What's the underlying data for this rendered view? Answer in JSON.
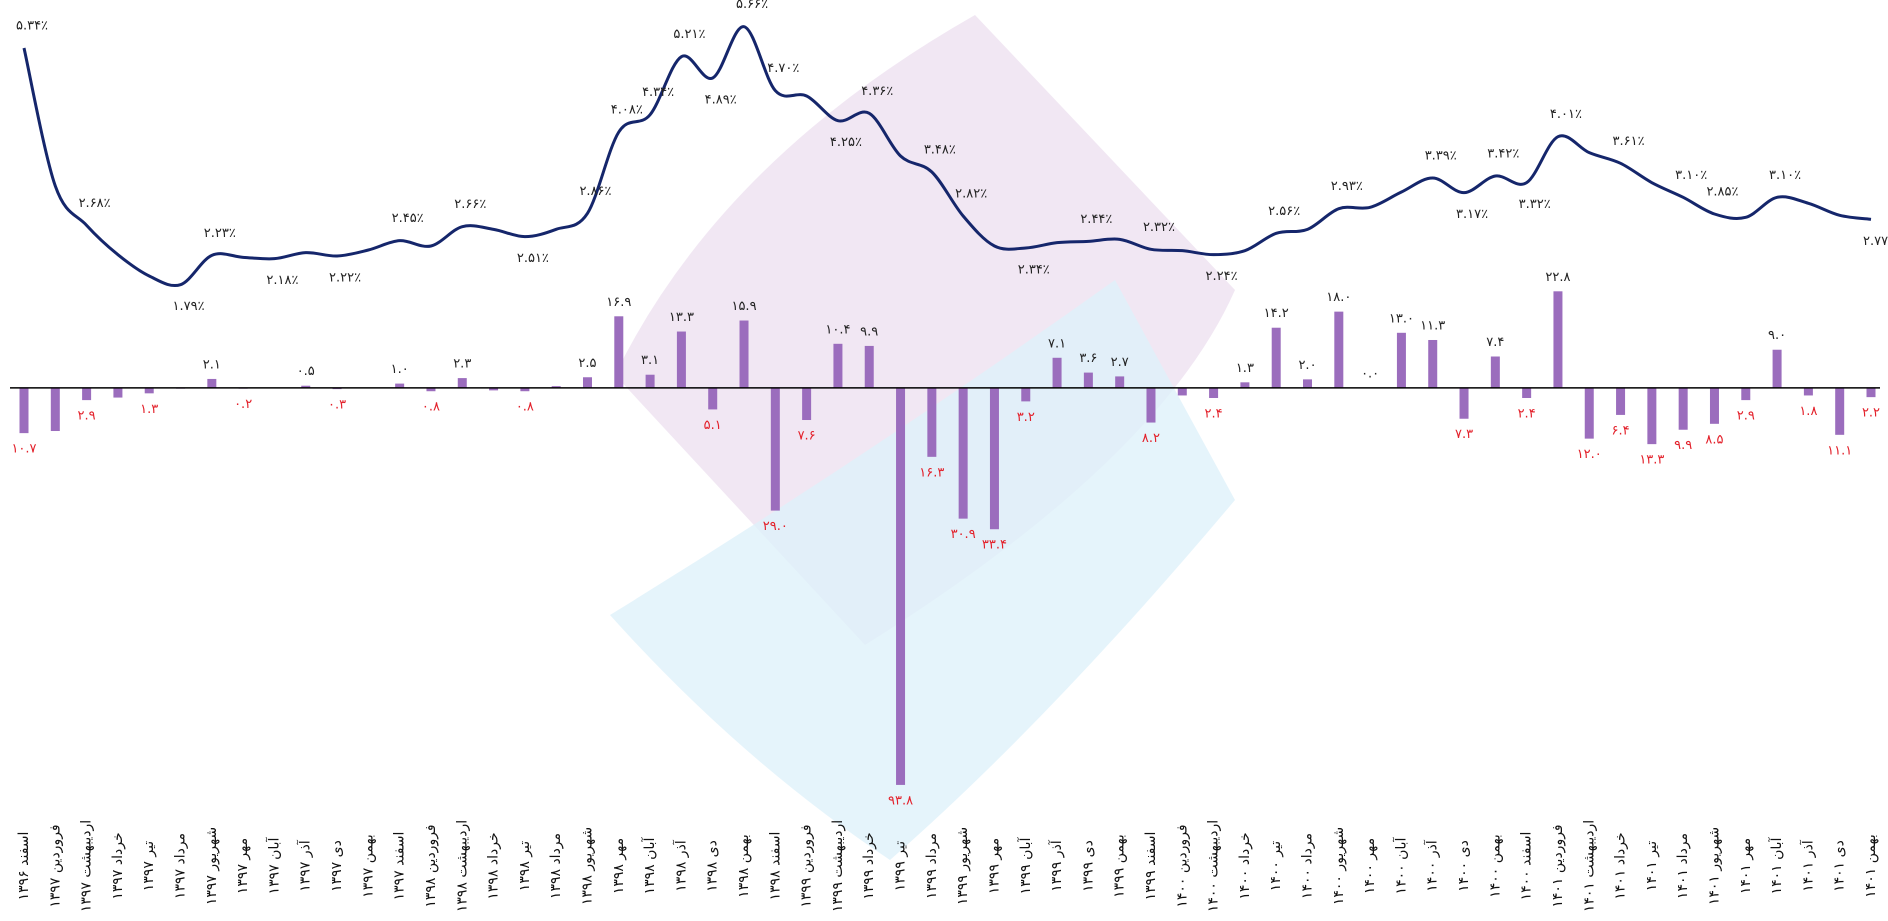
{
  "chart_data": {
    "type": "combo",
    "categories": [
      "اسفند ۱۳۹۶",
      "فروردین ۱۳۹۷",
      "اردیبهشت ۱۳۹۷",
      "خرداد ۱۳۹۷",
      "تیر ۱۳۹۷",
      "مرداد ۱۳۹۷",
      "شهریور ۱۳۹۷",
      "مهر ۱۳۹۷",
      "آبان ۱۳۹۷",
      "آذر ۱۳۹۷",
      "دی ۱۳۹۷",
      "بهمن ۱۳۹۷",
      "اسفند ۱۳۹۷",
      "فروردین ۱۳۹۸",
      "اردیبهشت ۱۳۹۸",
      "خرداد ۱۳۹۸",
      "تیر ۱۳۹۸",
      "مرداد ۱۳۹۸",
      "شهریور ۱۳۹۸",
      "مهر ۱۳۹۸",
      "آبان ۱۳۹۸",
      "آذر ۱۳۹۸",
      "دی ۱۳۹۸",
      "بهمن ۱۳۹۸",
      "اسفند ۱۳۹۸",
      "فروردین ۱۳۹۹",
      "اردیبهشت ۱۳۹۹",
      "خرداد ۱۳۹۹",
      "تیر ۱۳۹۹",
      "مرداد ۱۳۹۹",
      "شهریور ۱۳۹۹",
      "مهر ۱۳۹۹",
      "آبان ۱۳۹۹",
      "آذر ۱۳۹۹",
      "دی ۱۳۹۹",
      "بهمن ۱۳۹۹",
      "اسفند ۱۳۹۹",
      "فروردین ۱۴۰۰",
      "اردیبهشت ۱۴۰۰",
      "خرداد ۱۴۰۰",
      "تیر ۱۴۰۰",
      "مرداد ۱۴۰۰",
      "شهریور ۱۴۰۰",
      "مهر ۱۴۰۰",
      "آبان ۱۴۰۰",
      "آذر ۱۴۰۰",
      "دی ۱۴۰۰",
      "بهمن ۱۴۰۰",
      "اسفند ۱۴۰۰",
      "فروردین ۱۴۰۱",
      "اردیبهشت ۱۴۰۱",
      "خرداد ۱۴۰۱",
      "تیر ۱۴۰۱",
      "مرداد ۱۴۰۱",
      "شهریور ۱۴۰۱",
      "مهر ۱۴۰۱",
      "آبان ۱۴۰۱",
      "آذر ۱۴۰۱",
      "دی ۱۴۰۱",
      "بهمن ۱۴۰۱"
    ],
    "series": [
      {
        "type": "bar",
        "color": "#9b6dbd",
        "values": [
          -10.7,
          -10.2,
          -2.9,
          -2.3,
          -1.3,
          -0.2,
          2.1,
          -0.2,
          0,
          0.5,
          -0.3,
          0,
          1.0,
          -0.8,
          2.3,
          -0.6,
          -0.8,
          0.4,
          2.5,
          16.9,
          3.1,
          13.3,
          -5.1,
          15.9,
          -29.0,
          -7.6,
          10.4,
          9.9,
          -93.8,
          -16.3,
          -30.9,
          -33.4,
          -3.2,
          7.1,
          3.6,
          2.7,
          -8.2,
          -1.8,
          -2.4,
          1.3,
          14.2,
          2.0,
          18.0,
          0.0,
          13.0,
          11.3,
          -7.3,
          7.4,
          -2.4,
          22.8,
          -12.0,
          -6.4,
          -13.3,
          -9.9,
          -8.5,
          -2.9,
          9.0,
          -1.8,
          -11.1,
          -2.2
        ],
        "value_labels": [
          "۱۰.۷",
          null,
          "۲.۹",
          null,
          "۱.۳",
          null,
          "۲.۱",
          "۰.۲",
          null,
          "۰.۵",
          "۰.۳",
          null,
          "۱.۰",
          "۰.۸",
          "۲.۳",
          null,
          "۰.۸",
          null,
          "۲.۵",
          "۱۶.۹",
          "۳.۱",
          "۱۳.۳",
          "۵.۱",
          "۱۵.۹",
          "۲۹.۰",
          "۷.۶",
          "۱۰.۴",
          "۹.۹",
          "۹۳.۸",
          "۱۶.۳",
          "۳۰.۹",
          "۳۳.۴",
          "۳.۲",
          "۷.۱",
          "۳.۶",
          "۲.۷",
          "۸.۲",
          null,
          "۲.۴",
          "۱.۳",
          "۱۴.۲",
          "۲.۰",
          "۱۸.۰",
          "۰.۰",
          "۱۳.۰",
          "۱۱.۳",
          "۷.۳",
          "۷.۴",
          "۲.۴",
          "۲۲.۸",
          "۱۲.۰",
          "۶.۴",
          "۱۳.۳",
          "۹.۹",
          "۸.۵",
          "۲.۹",
          "۹.۰",
          "۱.۸",
          "۱۱.۱",
          "۲.۲"
        ]
      },
      {
        "type": "line",
        "axis": "y2",
        "color": "#15266b",
        "values": [
          5.34,
          3.27,
          2.68,
          2.24,
          1.92,
          1.79,
          2.23,
          2.2,
          2.18,
          2.27,
          2.22,
          2.31,
          2.45,
          2.37,
          2.66,
          2.62,
          2.51,
          2.62,
          2.86,
          4.08,
          4.34,
          5.21,
          4.89,
          5.66,
          4.7,
          4.62,
          4.25,
          4.36,
          3.72,
          3.48,
          2.82,
          2.37,
          2.34,
          2.42,
          2.44,
          2.47,
          2.32,
          2.3,
          2.24,
          2.3,
          2.56,
          2.62,
          2.93,
          2.95,
          3.18,
          3.39,
          3.17,
          3.42,
          3.32,
          4.01,
          3.77,
          3.61,
          3.32,
          3.1,
          2.85,
          2.8,
          3.1,
          3.01,
          2.83,
          2.77
        ],
        "value_labels": [
          "۵.۳۴٪",
          null,
          "۲.۶۸٪",
          null,
          null,
          "۱.۷۹٪",
          "۲.۲۳٪",
          null,
          "۲.۱۸٪",
          null,
          "۲.۲۲٪",
          null,
          "۲.۴۵٪",
          null,
          "۲.۶۶٪",
          null,
          "۲.۵۱٪",
          null,
          "۲.۸۶٪",
          "۴.۰۸٪",
          "۴.۳۴٪",
          "۵.۲۱٪",
          "۴.۸۹٪",
          "۵.۶۶٪",
          "۴.۷۰٪",
          null,
          "۴.۲۵٪",
          "۴.۳۶٪",
          null,
          "۳.۴۸٪",
          "۲.۸۲٪",
          null,
          "۲.۳۴٪",
          null,
          "۲.۴۴٪",
          null,
          "۲.۳۲٪",
          null,
          "۲.۲۴٪",
          null,
          "۲.۵۶٪",
          null,
          "۲.۹۳٪",
          null,
          null,
          "۳.۳۹٪",
          "۳.۱۷٪",
          "۳.۴۲٪",
          "۳.۳۲٪",
          "۴.۰۱٪",
          null,
          "۳.۶۱٪",
          null,
          "۳.۱۰٪",
          "۲.۸۵٪",
          null,
          "۳.۱۰٪",
          null,
          null,
          "۲.۷۷٪"
        ]
      }
    ],
    "ylim": [
      -95,
      25
    ],
    "y2lim": [
      1.5,
      6
    ],
    "label_color": "#222222",
    "negative_label_color": "#e3202a",
    "baseline_color": "#000000"
  }
}
